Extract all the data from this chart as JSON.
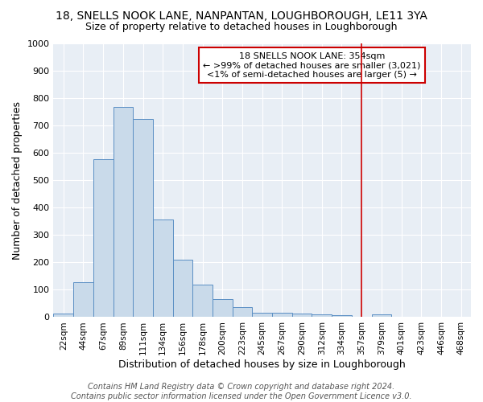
{
  "title": "18, SNELLS NOOK LANE, NANPANTAN, LOUGHBOROUGH, LE11 3YA",
  "subtitle": "Size of property relative to detached houses in Loughborough",
  "xlabel": "Distribution of detached houses by size in Loughborough",
  "ylabel": "Number of detached properties",
  "bar_color": "#c9daea",
  "bar_edge_color": "#5b8fc4",
  "background_color": "#e8eef5",
  "grid_color": "#ffffff",
  "categories": [
    "22sqm",
    "44sqm",
    "67sqm",
    "89sqm",
    "111sqm",
    "134sqm",
    "156sqm",
    "178sqm",
    "200sqm",
    "223sqm",
    "245sqm",
    "267sqm",
    "290sqm",
    "312sqm",
    "334sqm",
    "357sqm",
    "379sqm",
    "401sqm",
    "423sqm",
    "446sqm",
    "468sqm"
  ],
  "values": [
    12,
    127,
    578,
    768,
    725,
    358,
    210,
    120,
    65,
    37,
    17,
    17,
    12,
    9,
    8,
    0,
    9,
    0,
    0,
    0,
    0
  ],
  "ylim": [
    0,
    1000
  ],
  "yticks": [
    0,
    100,
    200,
    300,
    400,
    500,
    600,
    700,
    800,
    900,
    1000
  ],
  "vline_idx": 15,
  "vline_color": "#cc0000",
  "annotation_text": "18 SNELLS NOOK LANE: 354sqm\n← >99% of detached houses are smaller (3,021)\n<1% of semi-detached houses are larger (5) →",
  "footer_text": "Contains HM Land Registry data © Crown copyright and database right 2024.\nContains public sector information licensed under the Open Government Licence v3.0.",
  "title_fontsize": 10,
  "subtitle_fontsize": 9,
  "annotation_fontsize": 8,
  "footer_fontsize": 7
}
